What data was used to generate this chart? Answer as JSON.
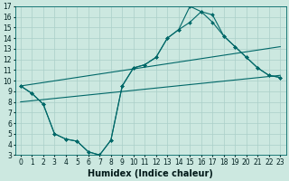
{
  "xlabel": "Humidex (Indice chaleur)",
  "xlim": [
    -0.5,
    23.5
  ],
  "ylim": [
    3,
    17
  ],
  "xticks": [
    0,
    1,
    2,
    3,
    4,
    5,
    6,
    7,
    8,
    9,
    10,
    11,
    12,
    13,
    14,
    15,
    16,
    17,
    18,
    19,
    20,
    21,
    22,
    23
  ],
  "yticks": [
    3,
    4,
    5,
    6,
    7,
    8,
    9,
    10,
    11,
    12,
    13,
    14,
    15,
    16,
    17
  ],
  "bg_color": "#cce8e0",
  "grid_color": "#aacfc8",
  "line_color": "#006868",
  "curve1_x": [
    0,
    1,
    2,
    3,
    4,
    5,
    6,
    7,
    8,
    9,
    10,
    11,
    12,
    13,
    14,
    15,
    16,
    17,
    18,
    19,
    20,
    21,
    22,
    23
  ],
  "curve1_y": [
    9.5,
    8.8,
    7.8,
    5.0,
    4.5,
    4.3,
    3.3,
    3.0,
    4.4,
    9.5,
    11.2,
    11.5,
    12.2,
    14.0,
    14.8,
    17.0,
    16.5,
    15.5,
    14.2,
    13.2,
    12.2,
    11.2,
    10.5,
    10.3
  ],
  "curve2_x": [
    0,
    1,
    2,
    3,
    4,
    5,
    6,
    7,
    8,
    9,
    10,
    11,
    12,
    13,
    14,
    15,
    16,
    17,
    18,
    19,
    20,
    21,
    22,
    23
  ],
  "curve2_y": [
    9.5,
    8.8,
    7.8,
    5.0,
    4.5,
    4.3,
    3.3,
    3.0,
    4.4,
    9.5,
    11.2,
    11.5,
    12.2,
    14.0,
    14.8,
    15.5,
    16.5,
    16.2,
    14.2,
    13.2,
    12.2,
    11.2,
    10.5,
    10.3
  ],
  "line1_x": [
    0,
    23
  ],
  "line1_y": [
    9.5,
    13.2
  ],
  "line2_x": [
    0,
    23
  ],
  "line2_y": [
    8.0,
    10.5
  ],
  "fontsize_label": 7,
  "fontsize_tick": 5.5
}
